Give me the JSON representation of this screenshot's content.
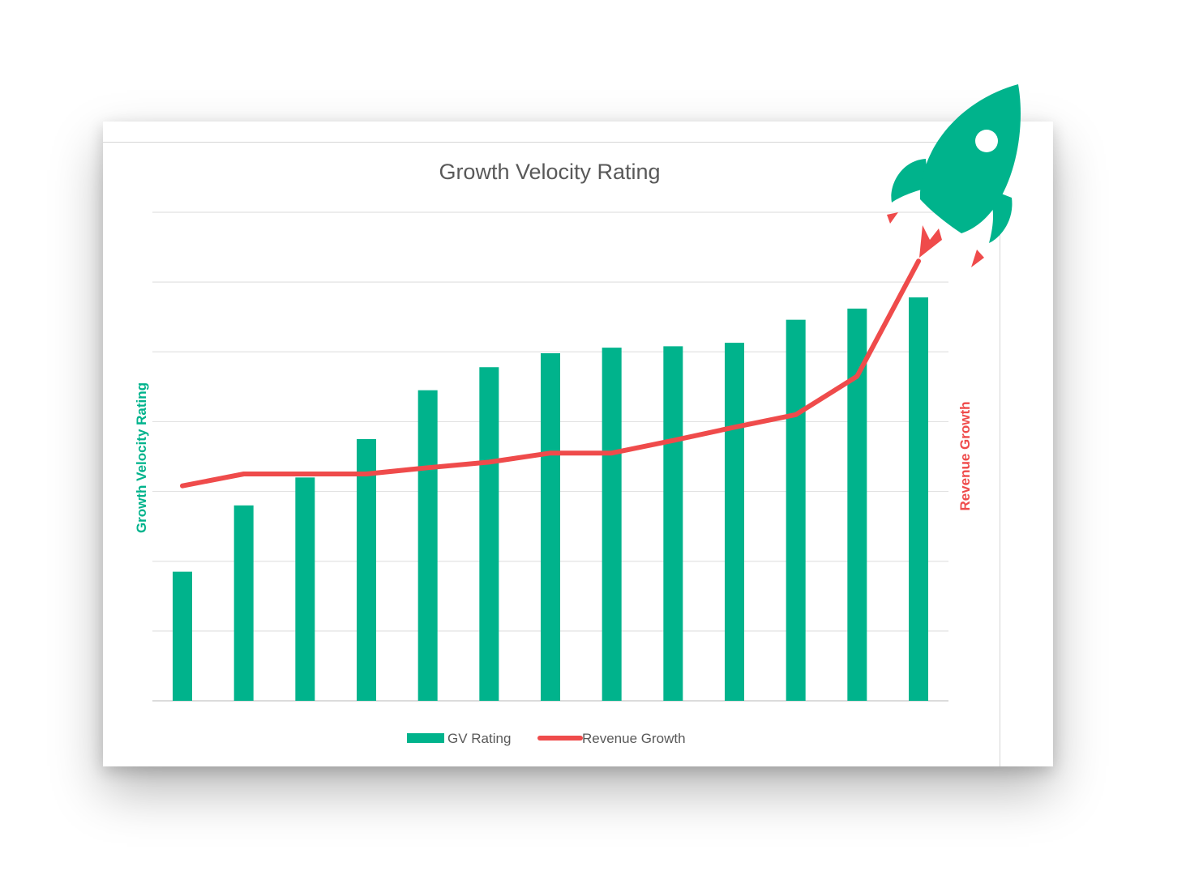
{
  "chart_data": {
    "type": "bar",
    "title": "Growth Velocity Rating",
    "ylabel": "Growth Velocity Rating",
    "y2label": "Revenue Growth",
    "ylim": [
      0,
      7
    ],
    "y2lim": [
      0,
      7
    ],
    "grid": true,
    "legend_position": "bottom",
    "series": [
      {
        "name": "GV Rating",
        "type": "bar",
        "color": "#00b38c",
        "values": [
          1.85,
          2.8,
          3.2,
          3.75,
          4.45,
          4.78,
          4.98,
          5.06,
          5.08,
          5.13,
          5.46,
          5.62,
          5.78
        ]
      },
      {
        "name": "Revenue Growth",
        "type": "line",
        "axis": "right",
        "color": "#ef4b4b",
        "values": [
          3.08,
          3.25,
          3.25,
          3.25,
          3.34,
          3.42,
          3.55,
          3.55,
          3.73,
          3.92,
          4.1,
          4.65,
          6.3
        ]
      }
    ]
  },
  "decoration": {
    "rocket_icon": "rocket-icon",
    "rocket_color": "#00b38c",
    "flame_color": "#ef4b4b"
  }
}
